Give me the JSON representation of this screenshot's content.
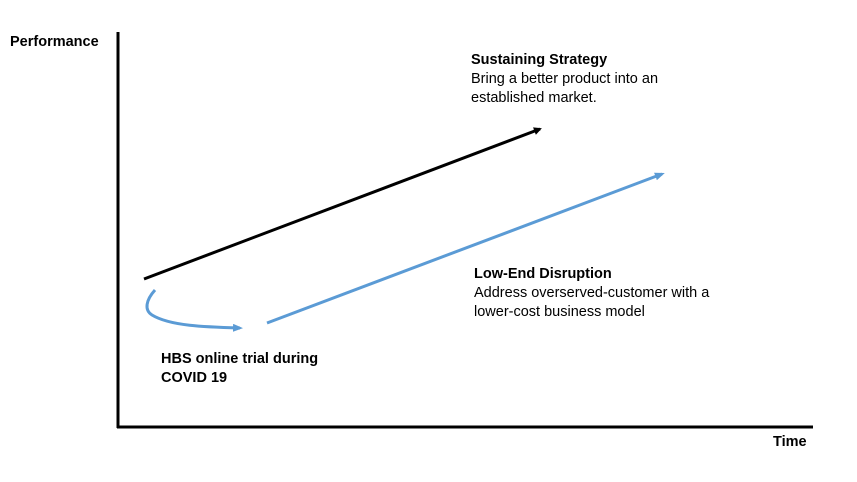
{
  "axes": {
    "y_label": "Performance",
    "x_label": "Time"
  },
  "sustaining": {
    "title": "Sustaining Strategy",
    "line1": "Bring a better product into an",
    "line2": "established market."
  },
  "lowend": {
    "title": "Low-End Disruption",
    "line1": "Address overserved-customer with a",
    "line2": "lower-cost business model"
  },
  "hbs": {
    "line1": "HBS online trial during",
    "line2": "COVID 19"
  },
  "colors": {
    "sustaining": "#000000",
    "lowend": "#5b9bd5"
  }
}
